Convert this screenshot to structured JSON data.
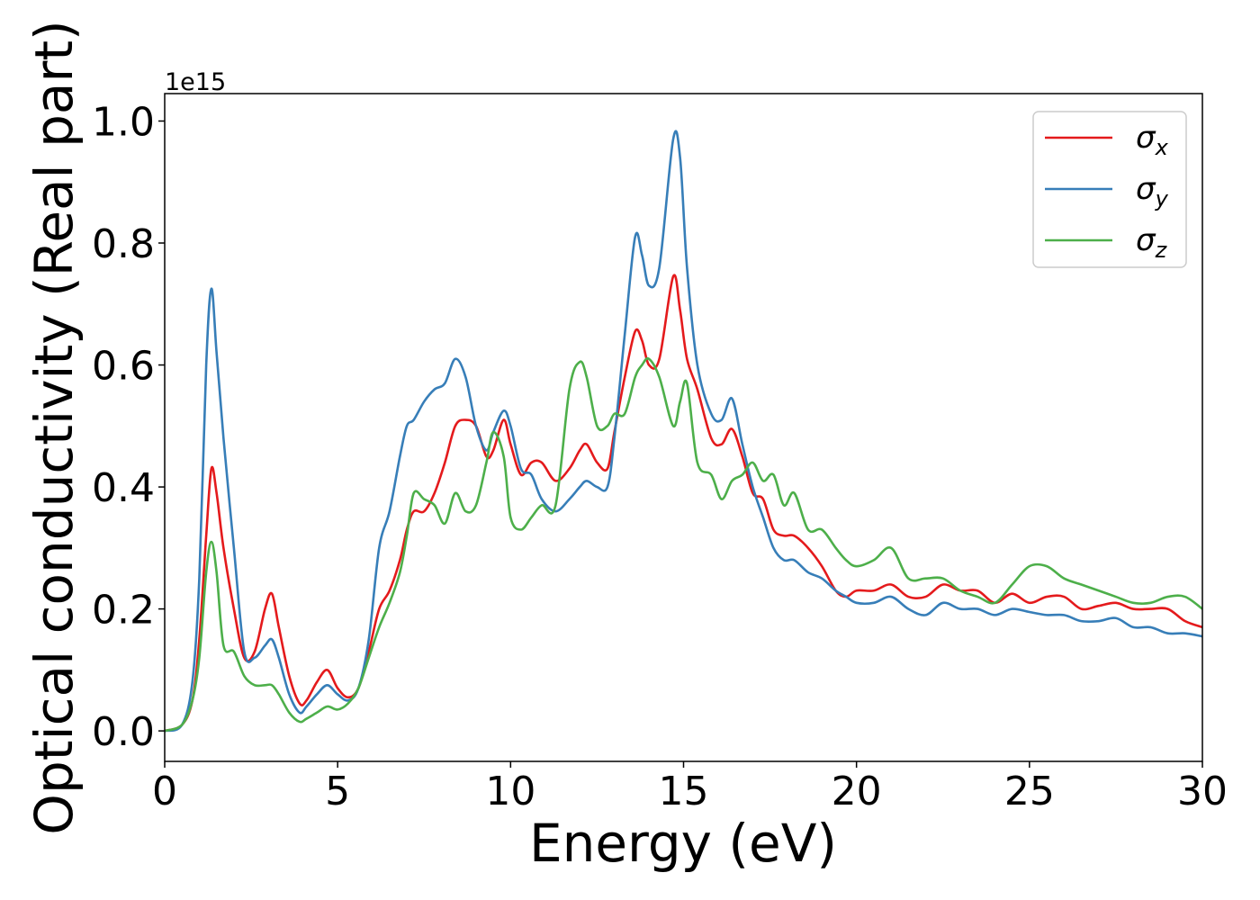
{
  "chart_data": {
    "type": "line",
    "title": "",
    "xlabel": "Energy (eV)",
    "ylabel": "Optical conductivity (Real part)",
    "y_offset_label": "1e15",
    "xlim": [
      0,
      30
    ],
    "ylim": [
      -0.05,
      1.045
    ],
    "xticks": [
      0,
      5,
      10,
      15,
      20,
      25,
      30
    ],
    "xtick_labels": [
      "0",
      "5",
      "10",
      "15",
      "20",
      "25",
      "30"
    ],
    "yticks": [
      0.0,
      0.2,
      0.4,
      0.6,
      0.8,
      1.0
    ],
    "ytick_labels": [
      "0.0",
      "0.2",
      "0.4",
      "0.6",
      "0.8",
      "1.0"
    ],
    "grid": false,
    "legend_position": "top-right",
    "series": [
      {
        "name": "σ",
        "subscript": "x",
        "color": "#e41a1c",
        "x": [
          0,
          0.5,
          0.8,
          1.0,
          1.2,
          1.35,
          1.5,
          1.7,
          2.0,
          2.3,
          2.6,
          2.9,
          3.1,
          3.3,
          3.6,
          3.9,
          4.1,
          4.4,
          4.7,
          5.0,
          5.3,
          5.6,
          5.9,
          6.2,
          6.5,
          6.8,
          7.0,
          7.2,
          7.5,
          7.8,
          8.1,
          8.4,
          8.7,
          9.0,
          9.3,
          9.5,
          9.8,
          10.0,
          10.3,
          10.6,
          10.9,
          11.3,
          11.7,
          12.0,
          12.2,
          12.5,
          12.8,
          13.0,
          13.3,
          13.6,
          13.8,
          14.0,
          14.3,
          14.7,
          14.9,
          15.1,
          15.4,
          15.8,
          16.1,
          16.4,
          16.7,
          17.0,
          17.3,
          17.6,
          17.9,
          18.2,
          18.6,
          19.0,
          19.4,
          19.7,
          20.0,
          20.5,
          21.0,
          21.5,
          22.0,
          22.5,
          23.0,
          23.5,
          24.0,
          24.5,
          25.0,
          25.5,
          26.0,
          26.5,
          27.0,
          27.5,
          28.0,
          28.5,
          29.0,
          29.5,
          30.0
        ],
        "y": [
          0.0,
          0.01,
          0.05,
          0.15,
          0.32,
          0.43,
          0.39,
          0.3,
          0.2,
          0.12,
          0.13,
          0.2,
          0.225,
          0.17,
          0.09,
          0.045,
          0.05,
          0.08,
          0.1,
          0.07,
          0.055,
          0.07,
          0.13,
          0.2,
          0.23,
          0.28,
          0.33,
          0.36,
          0.36,
          0.39,
          0.44,
          0.5,
          0.51,
          0.5,
          0.45,
          0.46,
          0.51,
          0.47,
          0.42,
          0.44,
          0.44,
          0.41,
          0.43,
          0.46,
          0.47,
          0.44,
          0.43,
          0.49,
          0.58,
          0.655,
          0.64,
          0.6,
          0.61,
          0.745,
          0.69,
          0.61,
          0.56,
          0.48,
          0.47,
          0.495,
          0.45,
          0.39,
          0.38,
          0.33,
          0.32,
          0.32,
          0.3,
          0.27,
          0.23,
          0.22,
          0.23,
          0.23,
          0.24,
          0.22,
          0.22,
          0.24,
          0.23,
          0.23,
          0.21,
          0.225,
          0.21,
          0.22,
          0.22,
          0.2,
          0.205,
          0.21,
          0.2,
          0.2,
          0.2,
          0.18,
          0.17
        ]
      },
      {
        "name": "σ",
        "subscript": "y",
        "color": "#377eb8",
        "x": [
          0,
          0.5,
          0.8,
          1.0,
          1.2,
          1.35,
          1.5,
          1.7,
          2.0,
          2.3,
          2.6,
          2.9,
          3.1,
          3.3,
          3.6,
          3.9,
          4.1,
          4.4,
          4.7,
          5.0,
          5.3,
          5.6,
          5.9,
          6.2,
          6.5,
          6.8,
          7.0,
          7.2,
          7.5,
          7.8,
          8.1,
          8.4,
          8.7,
          9.0,
          9.3,
          9.5,
          9.8,
          10.0,
          10.3,
          10.6,
          10.9,
          11.3,
          11.7,
          12.0,
          12.2,
          12.5,
          12.8,
          13.0,
          13.3,
          13.6,
          13.8,
          14.0,
          14.3,
          14.7,
          14.9,
          15.1,
          15.4,
          15.8,
          16.1,
          16.4,
          16.7,
          17.0,
          17.3,
          17.6,
          17.9,
          18.2,
          18.6,
          19.0,
          19.4,
          19.7,
          20.0,
          20.5,
          21.0,
          21.5,
          22.0,
          22.5,
          23.0,
          23.5,
          24.0,
          24.5,
          25.0,
          25.5,
          26.0,
          26.5,
          27.0,
          27.5,
          28.0,
          28.5,
          29.0,
          29.5,
          30.0
        ],
        "y": [
          0.0,
          0.01,
          0.08,
          0.25,
          0.6,
          0.725,
          0.62,
          0.48,
          0.3,
          0.13,
          0.12,
          0.14,
          0.15,
          0.12,
          0.06,
          0.03,
          0.04,
          0.06,
          0.075,
          0.06,
          0.05,
          0.07,
          0.15,
          0.3,
          0.36,
          0.45,
          0.5,
          0.51,
          0.54,
          0.56,
          0.57,
          0.61,
          0.58,
          0.5,
          0.46,
          0.49,
          0.525,
          0.5,
          0.43,
          0.42,
          0.38,
          0.36,
          0.38,
          0.4,
          0.41,
          0.4,
          0.4,
          0.48,
          0.65,
          0.81,
          0.78,
          0.73,
          0.76,
          0.97,
          0.94,
          0.76,
          0.6,
          0.52,
          0.51,
          0.545,
          0.47,
          0.4,
          0.35,
          0.3,
          0.28,
          0.28,
          0.26,
          0.25,
          0.23,
          0.22,
          0.21,
          0.21,
          0.22,
          0.2,
          0.19,
          0.21,
          0.2,
          0.2,
          0.19,
          0.2,
          0.195,
          0.19,
          0.19,
          0.18,
          0.18,
          0.185,
          0.17,
          0.17,
          0.16,
          0.16,
          0.155
        ]
      },
      {
        "name": "σ",
        "subscript": "z",
        "color": "#4daf4a",
        "x": [
          0,
          0.5,
          0.8,
          1.0,
          1.2,
          1.35,
          1.5,
          1.7,
          2.0,
          2.3,
          2.6,
          2.9,
          3.1,
          3.3,
          3.6,
          3.9,
          4.1,
          4.4,
          4.7,
          5.0,
          5.3,
          5.6,
          5.9,
          6.2,
          6.5,
          6.8,
          7.0,
          7.2,
          7.5,
          7.8,
          8.1,
          8.4,
          8.7,
          9.0,
          9.3,
          9.5,
          9.8,
          10.0,
          10.3,
          10.6,
          10.9,
          11.3,
          11.7,
          12.0,
          12.2,
          12.5,
          12.8,
          13.0,
          13.3,
          13.6,
          13.8,
          14.0,
          14.3,
          14.7,
          14.9,
          15.1,
          15.4,
          15.8,
          16.1,
          16.4,
          16.7,
          17.0,
          17.3,
          17.6,
          17.9,
          18.2,
          18.6,
          19.0,
          19.4,
          19.7,
          20.0,
          20.5,
          21.0,
          21.5,
          22.0,
          22.5,
          23.0,
          23.5,
          24.0,
          24.5,
          25.0,
          25.5,
          26.0,
          26.5,
          27.0,
          27.5,
          28.0,
          28.5,
          29.0,
          29.5,
          30.0
        ],
        "y": [
          0.0,
          0.01,
          0.05,
          0.12,
          0.26,
          0.31,
          0.26,
          0.14,
          0.13,
          0.09,
          0.075,
          0.075,
          0.075,
          0.06,
          0.03,
          0.015,
          0.02,
          0.03,
          0.04,
          0.035,
          0.045,
          0.07,
          0.12,
          0.17,
          0.21,
          0.26,
          0.32,
          0.39,
          0.38,
          0.37,
          0.34,
          0.39,
          0.36,
          0.37,
          0.44,
          0.49,
          0.45,
          0.35,
          0.33,
          0.35,
          0.37,
          0.37,
          0.56,
          0.605,
          0.58,
          0.5,
          0.5,
          0.52,
          0.52,
          0.58,
          0.6,
          0.61,
          0.58,
          0.5,
          0.54,
          0.57,
          0.44,
          0.42,
          0.38,
          0.41,
          0.42,
          0.44,
          0.41,
          0.42,
          0.37,
          0.39,
          0.33,
          0.33,
          0.3,
          0.28,
          0.27,
          0.28,
          0.3,
          0.25,
          0.25,
          0.25,
          0.23,
          0.22,
          0.21,
          0.24,
          0.27,
          0.27,
          0.25,
          0.24,
          0.23,
          0.22,
          0.21,
          0.21,
          0.22,
          0.22,
          0.2
        ]
      }
    ]
  }
}
